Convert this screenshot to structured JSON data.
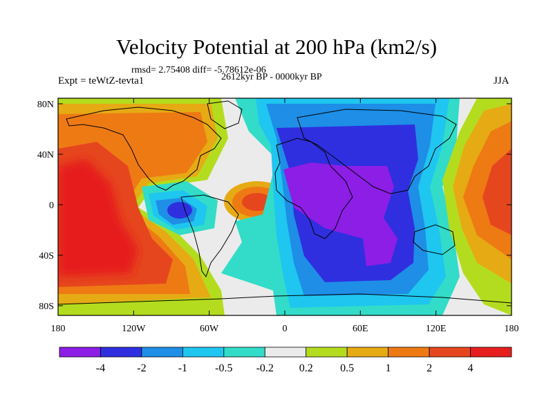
{
  "header": {
    "title": "Velocity Potential at 200 hPa (km2/s)",
    "stats": "rmsd= 2.75408 diff= -5.78612e-06",
    "experiment": "Expt = teWtZ-tevta1",
    "period": "2612kyr BP - 0000kyr BP",
    "season": "JJA"
  },
  "axes": {
    "lat_ticks": [
      "80N",
      "40N",
      "0",
      "40S",
      "80S"
    ],
    "lon_ticks": [
      "180",
      "120W",
      "60W",
      "0",
      "60E",
      "120E",
      "180"
    ]
  },
  "colorbar": {
    "colors": [
      "#8c1ee6",
      "#2f2fe0",
      "#1e8ee6",
      "#1ec6f0",
      "#32dcc8",
      "#ebebeb",
      "#b4dc1e",
      "#e6aa14",
      "#ee7a14",
      "#e6461e",
      "#e61e1e"
    ],
    "labels": [
      "-4",
      "-2",
      "-1",
      "-0.5",
      "-0.2",
      "0.2",
      "0.5",
      "1",
      "2",
      "4"
    ]
  }
}
